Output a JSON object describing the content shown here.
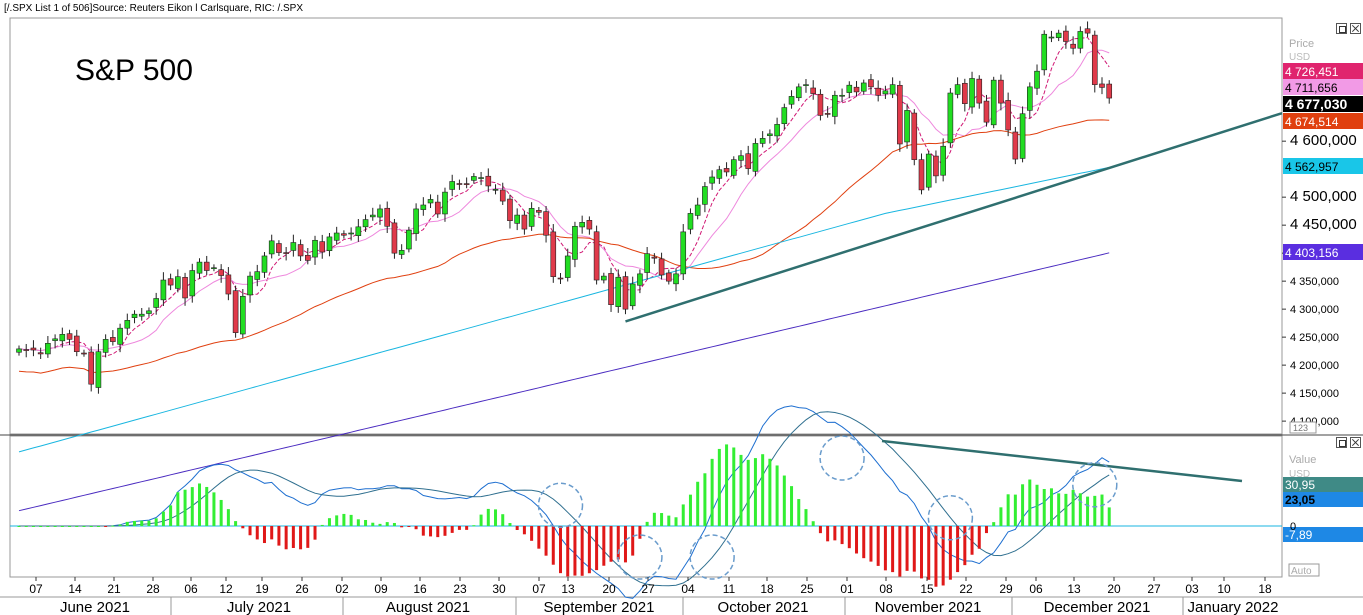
{
  "header": {
    "text": "[/.SPX List 1 of 506]Source: Reuters Eikon l Carlsquare, RIC: /.SPX"
  },
  "chart_title": "S&P 500",
  "price_panel": {
    "axis_title": "Price",
    "axis_unit": "USD",
    "y_ticks": [
      4100000,
      4150000,
      4200000,
      4250000,
      4300000,
      4350000,
      4400000,
      4450000,
      4500000,
      4600000
    ],
    "y_tick_labels": [
      "4 100,000",
      "4 150,000",
      "4 200,000",
      "4 250,000",
      "4 300,000",
      "4 350,000",
      "4 400,000",
      "4 450,000",
      "4 500,000",
      "4 600,000"
    ],
    "ylim": [
      4077,
      4820
    ],
    "value_badges": [
      {
        "label": "4 726,451",
        "value": 4726.451,
        "color": "#e0246e"
      },
      {
        "label": "4 711,656",
        "value": 4711.656,
        "color": "#f29ae6"
      },
      {
        "label": "4 677,030",
        "value": 4677.03,
        "color": "#000000"
      },
      {
        "label": "4 674,514",
        "value": 4674.514,
        "color": "#e0400f"
      },
      {
        "label": "4 562,957",
        "value": 4562.957,
        "color": "#19c6e8"
      },
      {
        "label": "4 403,156",
        "value": 4403.156,
        "color": "#5a2ee0"
      }
    ],
    "scale_badge": "123"
  },
  "indicator_panel": {
    "axis_title": "Value",
    "axis_unit": "USD",
    "zero_label": "0",
    "value_badges": [
      {
        "label": "30,95",
        "value": 30.95,
        "color": "#3f8a86"
      },
      {
        "label": "23,05",
        "value": 23.05,
        "color": "#1e88e5"
      },
      {
        "label": "-7,89",
        "value": -7.89,
        "color": "#1e88e5"
      }
    ],
    "auto_label": "Auto"
  },
  "x_axis": {
    "day_ticks": [
      "07",
      "14",
      "21",
      "28",
      "06",
      "12",
      "19",
      "26",
      "02",
      "09",
      "16",
      "23",
      "30",
      "07",
      "13",
      "20",
      "27",
      "04",
      "11",
      "18",
      "25",
      "01",
      "08",
      "15",
      "22",
      "29",
      "06",
      "13",
      "20",
      "27",
      "03",
      "10",
      "18"
    ],
    "months": [
      "June 2021",
      "July 2021",
      "August 2021",
      "September 2021",
      "October 2021",
      "November 2021",
      "December 2021",
      "January 2022"
    ]
  },
  "chart_data": {
    "type": "candlestick",
    "title": "S&P 500",
    "source": "Reuters Eikon l Carlsquare",
    "ylabel": "Price USD",
    "ylim": [
      4077,
      4820
    ],
    "dates": [
      "2021-06-04",
      "2021-06-07",
      "2021-06-08",
      "2021-06-09",
      "2021-06-10",
      "2021-06-11",
      "2021-06-14",
      "2021-06-15",
      "2021-06-16",
      "2021-06-17",
      "2021-06-18",
      "2021-06-21",
      "2021-06-22",
      "2021-06-23",
      "2021-06-24",
      "2021-06-25",
      "2021-06-28",
      "2021-06-29",
      "2021-06-30",
      "2021-07-01",
      "2021-07-02",
      "2021-07-06",
      "2021-07-07",
      "2021-07-08",
      "2021-07-09",
      "2021-07-12",
      "2021-07-13",
      "2021-07-14",
      "2021-07-15",
      "2021-07-16",
      "2021-07-19",
      "2021-07-20",
      "2021-07-21",
      "2021-07-22",
      "2021-07-23",
      "2021-07-26",
      "2021-07-27",
      "2021-07-28",
      "2021-07-29",
      "2021-07-30",
      "2021-08-02",
      "2021-08-03",
      "2021-08-04",
      "2021-08-05",
      "2021-08-06",
      "2021-08-09",
      "2021-08-10",
      "2021-08-11",
      "2021-08-12",
      "2021-08-13",
      "2021-08-16",
      "2021-08-17",
      "2021-08-18",
      "2021-08-19",
      "2021-08-20",
      "2021-08-23",
      "2021-08-24",
      "2021-08-25",
      "2021-08-26",
      "2021-08-27",
      "2021-08-30",
      "2021-08-31",
      "2021-09-01",
      "2021-09-02",
      "2021-09-03",
      "2021-09-07",
      "2021-09-08",
      "2021-09-09",
      "2021-09-10",
      "2021-09-13",
      "2021-09-14",
      "2021-09-15",
      "2021-09-16",
      "2021-09-17",
      "2021-09-20",
      "2021-09-21",
      "2021-09-22",
      "2021-09-23",
      "2021-09-24",
      "2021-09-27",
      "2021-09-28",
      "2021-09-29",
      "2021-09-30",
      "2021-10-01",
      "2021-10-04",
      "2021-10-05",
      "2021-10-06",
      "2021-10-07",
      "2021-10-08",
      "2021-10-11",
      "2021-10-12",
      "2021-10-13",
      "2021-10-14",
      "2021-10-15",
      "2021-10-18",
      "2021-10-19",
      "2021-10-20",
      "2021-10-21",
      "2021-10-22",
      "2021-10-25",
      "2021-10-26",
      "2021-10-27",
      "2021-10-28",
      "2021-10-29",
      "2021-11-01",
      "2021-11-02",
      "2021-11-03",
      "2021-11-04",
      "2021-11-05",
      "2021-11-08",
      "2021-11-09",
      "2021-11-10",
      "2021-11-11",
      "2021-11-12",
      "2021-11-15",
      "2021-11-16",
      "2021-11-17",
      "2021-11-18",
      "2021-11-19",
      "2021-11-22",
      "2021-11-23",
      "2021-11-24",
      "2021-11-26",
      "2021-11-29",
      "2021-11-30",
      "2021-12-01",
      "2021-12-02",
      "2021-12-03",
      "2021-12-06",
      "2021-12-07",
      "2021-12-08",
      "2021-12-09",
      "2021-12-10",
      "2021-12-13",
      "2021-12-14",
      "2021-12-15",
      "2021-12-16",
      "2021-12-17",
      "2021-12-20",
      "2021-12-21",
      "2021-12-22",
      "2021-12-23",
      "2021-12-27",
      "2021-12-28",
      "2021-12-29",
      "2021-12-30",
      "2021-12-31",
      "2022-01-03",
      "2022-01-04",
      "2022-01-05",
      "2022-01-06",
      "2022-01-07"
    ],
    "close": [
      4229,
      4227,
      4227,
      4220,
      4239,
      4247,
      4255,
      4246,
      4224,
      4221,
      4166,
      4224,
      4246,
      4242,
      4266,
      4280,
      4291,
      4291,
      4297,
      4319,
      4352,
      4343,
      4358,
      4320,
      4369,
      4384,
      4369,
      4374,
      4360,
      4327,
      4258,
      4323,
      4359,
      4367,
      4395,
      4422,
      4401,
      4400,
      4419,
      4395,
      4387,
      4423,
      4402,
      4429,
      4436,
      4432,
      4436,
      4447,
      4460,
      4468,
      4479,
      4448,
      4400,
      4405,
      4441,
      4479,
      4486,
      4496,
      4470,
      4509,
      4528,
      4523,
      4524,
      4537,
      4535,
      4520,
      4514,
      4493,
      4458,
      4468,
      4443,
      4480,
      4473,
      4432,
      4358,
      4354,
      4395,
      4448,
      4455,
      4443,
      4352,
      4359,
      4308,
      4357,
      4300,
      4345,
      4363,
      4399,
      4391,
      4361,
      4350,
      4363,
      4438,
      4471,
      4486,
      4519,
      4536,
      4549,
      4545,
      4567,
      4574,
      4551,
      4596,
      4605,
      4613,
      4630,
      4660,
      4680,
      4697,
      4701,
      4685,
      4646,
      4649,
      4682,
      4682,
      4700,
      4688,
      4704,
      4697,
      4682,
      4690,
      4701,
      4595,
      4655,
      4567,
      4513,
      4577,
      4538,
      4591,
      4686,
      4701,
      4667,
      4712,
      4668,
      4634,
      4709,
      4668,
      4620,
      4568,
      4649,
      4697,
      4725,
      4791,
      4786,
      4793,
      4778,
      4766,
      4796,
      4793,
      4701,
      4696,
      4677
    ],
    "moving_averages": [
      {
        "label": "4 726,451",
        "value": 4726.451
      },
      {
        "label": "4 711,656",
        "value": 4711.656
      },
      {
        "label": "4 674,514",
        "value": 4674.514
      },
      {
        "label": "4 562,957",
        "value": 4562.957
      },
      {
        "label": "4 403,156",
        "value": 4403.156
      }
    ],
    "trendline": {
      "from": [
        "2021-10-04",
        4278
      ],
      "to": [
        "2022-01-14",
        4650
      ]
    },
    "indicator": {
      "type": "macd",
      "values_latest": {
        "macd": 30.95,
        "signal": 23.05,
        "histogram": -7.89
      },
      "trendline": "falling, from 2021-11-08 peak to 2022-01-07",
      "highlighted_crossovers": [
        "2021-09-06",
        "2021-09-21",
        "2021-10-06",
        "2021-10-20",
        "2021-11-15",
        "2021-12-07",
        "2022-01-05"
      ]
    }
  }
}
